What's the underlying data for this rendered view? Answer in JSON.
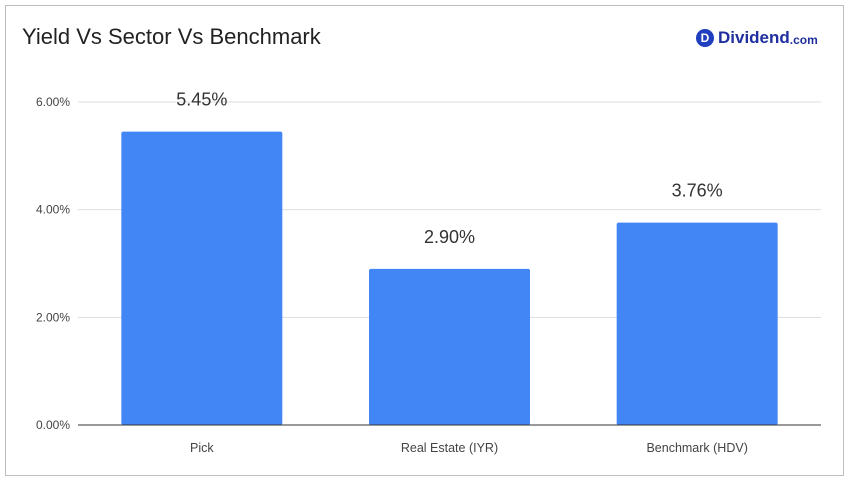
{
  "chart_data": {
    "type": "bar",
    "title": "Yield Vs Sector Vs Benchmark",
    "xlabel": "",
    "ylabel": "",
    "categories": [
      "Pick",
      "Real Estate (IYR)",
      "Benchmark (HDV)"
    ],
    "values": [
      5.45,
      2.9,
      3.76
    ],
    "data_labels": [
      "5.45%",
      "2.90%",
      "3.76%"
    ],
    "ylim": [
      0,
      6
    ],
    "yticks": [
      0,
      2,
      4,
      6
    ],
    "ytick_labels": [
      "0.00%",
      "2.00%",
      "4.00%",
      "6.00%"
    ],
    "grid": true,
    "legend": "none",
    "bar_color": "#4285f4"
  },
  "logo": {
    "badge": "D",
    "name": "Dividend",
    "tld": ".com"
  }
}
